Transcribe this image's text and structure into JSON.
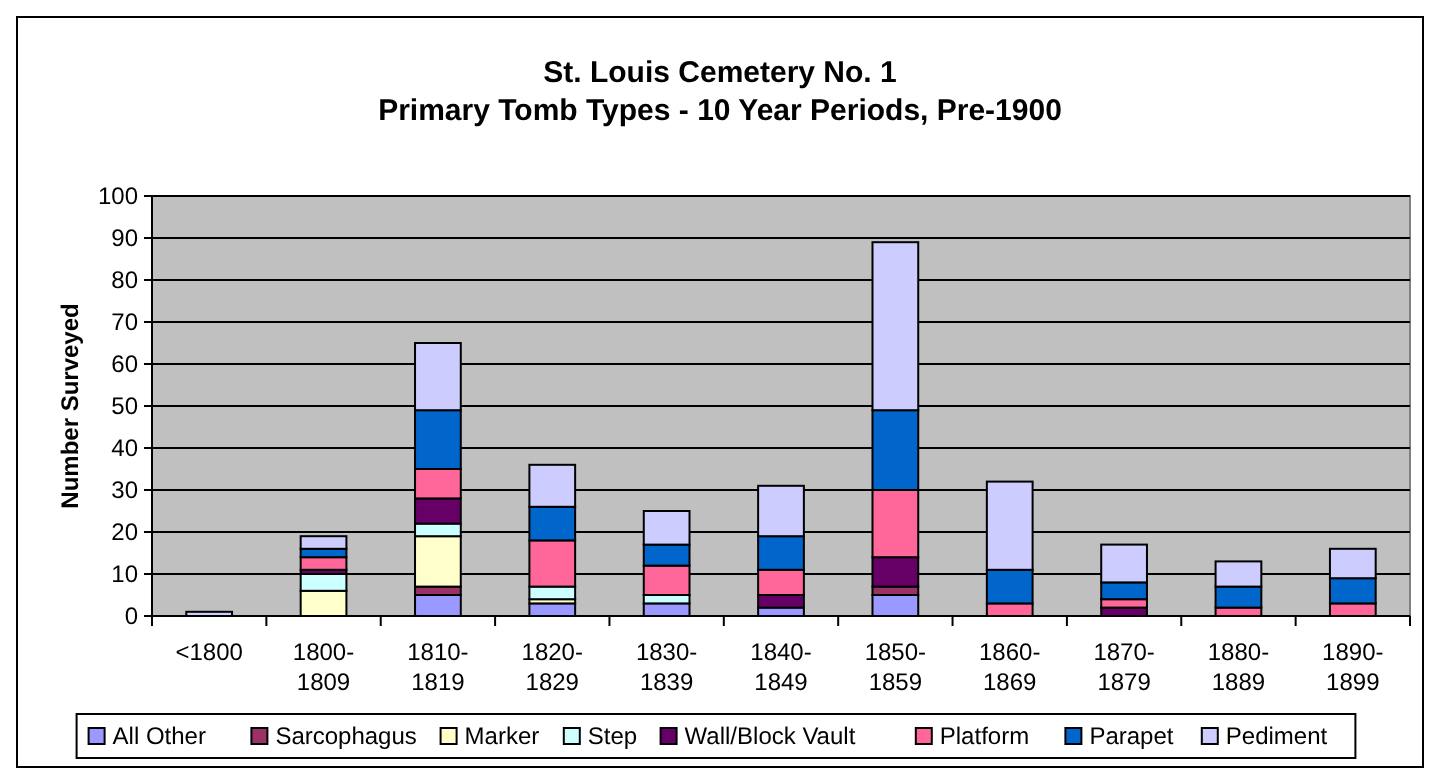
{
  "chart_data": {
    "type": "bar",
    "stacked": true,
    "title": "St. Louis Cemetery No. 1",
    "subtitle": "Primary Tomb Types - 10 Year Periods, Pre-1900",
    "ylabel": "Number Surveyed",
    "categories": [
      "<1800",
      "1800-1809",
      "1810-1819",
      "1820-1829",
      "1830-1839",
      "1840-1849",
      "1850-1859",
      "1860-1869",
      "1870-1879",
      "1880-1889",
      "1890-1899"
    ],
    "series": [
      {
        "name": "All Other",
        "color": "#9999ff",
        "values": [
          0,
          0,
          5,
          3,
          3,
          2,
          5,
          0,
          0,
          0,
          0
        ]
      },
      {
        "name": "Sarcophagus",
        "color": "#993366",
        "values": [
          0,
          0,
          2,
          0,
          0,
          0,
          2,
          0,
          0,
          0,
          0
        ]
      },
      {
        "name": "Marker",
        "color": "#ffffcc",
        "values": [
          0,
          6,
          12,
          1,
          0,
          0,
          0,
          0,
          0,
          0,
          0
        ]
      },
      {
        "name": "Step",
        "color": "#ccffff",
        "values": [
          0,
          4,
          3,
          3,
          2,
          0,
          0,
          0,
          0,
          0,
          0
        ]
      },
      {
        "name": "Wall/Block Vault",
        "color": "#660066",
        "values": [
          0,
          1,
          6,
          0,
          0,
          3,
          7,
          0,
          2,
          0,
          0
        ]
      },
      {
        "name": "Platform",
        "color": "#ff6699",
        "values": [
          0,
          3,
          7,
          11,
          7,
          6,
          16,
          3,
          2,
          2,
          3
        ]
      },
      {
        "name": "Parapet",
        "color": "#0066cc",
        "values": [
          0,
          2,
          14,
          8,
          5,
          8,
          19,
          8,
          4,
          5,
          6
        ]
      },
      {
        "name": "Pediment",
        "color": "#ccccff",
        "values": [
          1,
          3,
          16,
          10,
          8,
          12,
          40,
          21,
          9,
          6,
          7
        ]
      }
    ],
    "ylim": [
      0,
      100
    ],
    "yticks": [
      0,
      10,
      20,
      30,
      40,
      50,
      60,
      70,
      80,
      90,
      100
    ],
    "grid": "y",
    "legend": "bottom"
  }
}
